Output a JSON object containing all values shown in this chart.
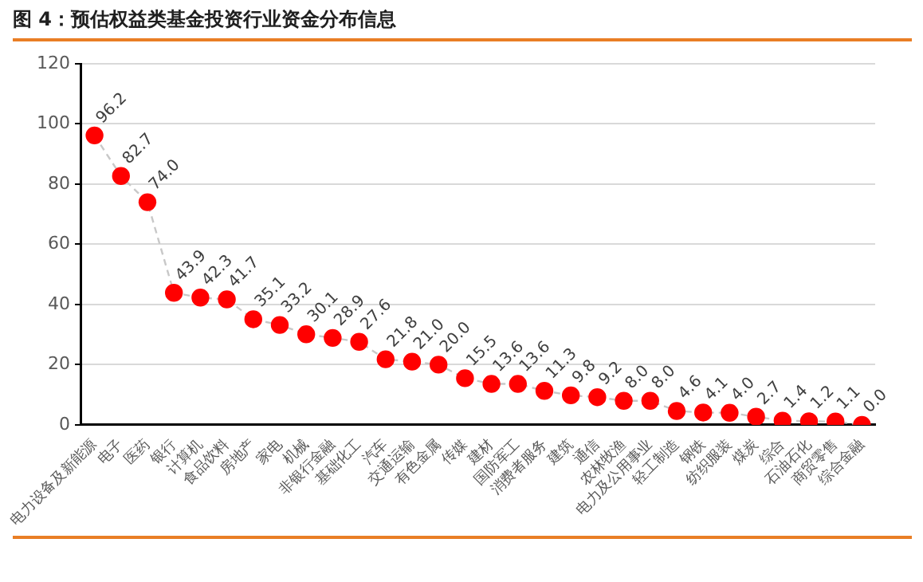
{
  "chart_data": {
    "type": "line",
    "title": "图 4：预估权益类基金投资行业资金分布信息",
    "categories": [
      "电力设备及新能源",
      "电子",
      "医药",
      "银行",
      "计算机",
      "食品饮料",
      "房地产",
      "家电",
      "机械",
      "非银行金融",
      "基础化工",
      "汽车",
      "交通运输",
      "有色金属",
      "传媒",
      "建材",
      "国防军工",
      "消费者服务",
      "建筑",
      "通信",
      "农林牧渔",
      "电力及公用事业",
      "轻工制造",
      "钢铁",
      "纺织服装",
      "煤炭",
      "综合",
      "石油石化",
      "商贸零售",
      "综合金融"
    ],
    "series": [
      {
        "color": "#ff0000",
        "values": [
          96.2,
          82.7,
          74.0,
          43.9,
          42.3,
          41.7,
          35.1,
          33.2,
          30.1,
          28.9,
          27.6,
          21.8,
          21.0,
          20.0,
          15.5,
          13.6,
          13.6,
          11.3,
          9.8,
          9.2,
          8.0,
          8.0,
          4.6,
          4.1,
          4.0,
          2.7,
          1.4,
          1.2,
          1.1,
          0.0
        ],
        "value_labels": [
          "96.2",
          "82.7",
          "74.0",
          "43.9",
          "42.3",
          "41.7",
          "35.1",
          "33.2",
          "30.1",
          "28.9",
          "27.6",
          "21.8",
          "21.0",
          "20.0",
          "15.5",
          "13.6",
          "13.6",
          "11.3",
          "9.8",
          "9.2",
          "8.0",
          "8.0",
          "4.6",
          "4.1",
          "4.0",
          "2.7",
          "1.4",
          "1.2",
          "1.1",
          "0.0"
        ]
      }
    ],
    "ylim": [
      0,
      120
    ],
    "yticks": [
      0,
      20,
      40,
      60,
      80,
      100,
      120
    ],
    "grid": "y",
    "legend": false,
    "marker": "circle",
    "line_style": "dashed"
  }
}
